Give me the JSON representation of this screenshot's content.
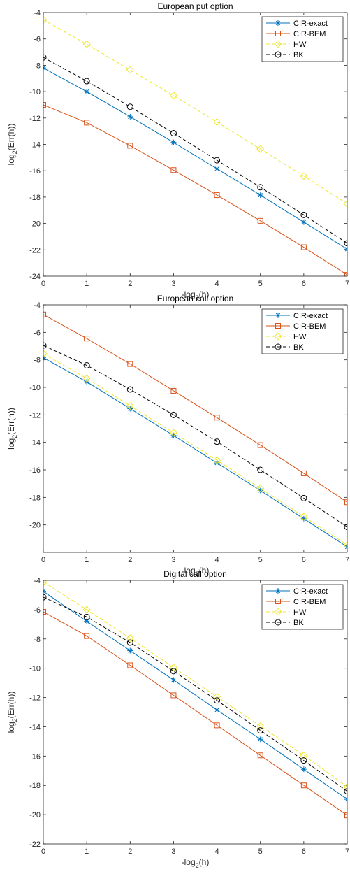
{
  "chart_data": [
    {
      "type": "line",
      "title": "European put option",
      "xlabel": {
        "base": "-log",
        "sub": "2",
        "tail": "(h)"
      },
      "ylabel": {
        "base": "log",
        "sub": "2",
        "tail": "(Err(h))"
      },
      "xlim": [
        0,
        7
      ],
      "ylim": [
        -24,
        -4
      ],
      "xticks": [
        0,
        1,
        2,
        3,
        4,
        5,
        6,
        7
      ],
      "yticks": [
        -24,
        -22,
        -20,
        -18,
        -16,
        -14,
        -12,
        -10,
        -8,
        -6,
        -4
      ],
      "legend_position": "top-right",
      "x": [
        0,
        1,
        2,
        3,
        4,
        5,
        6,
        7
      ],
      "series": [
        {
          "name": "CIR-exact",
          "color": "#0072BD",
          "dash": "solid",
          "marker": "asterisk",
          "values": [
            -8.2,
            -10.0,
            -11.9,
            -13.85,
            -15.85,
            -17.85,
            -19.9,
            -21.95
          ]
        },
        {
          "name": "CIR-BEM",
          "color": "#D95319",
          "dash": "solid",
          "marker": "square",
          "values": [
            -11.0,
            -12.35,
            -14.1,
            -15.95,
            -17.85,
            -19.8,
            -21.8,
            -23.9
          ]
        },
        {
          "name": "HW",
          "color": "#EDE62E",
          "dash": "dashed",
          "marker": "diamond",
          "values": [
            -4.55,
            -6.4,
            -8.35,
            -10.3,
            -12.3,
            -14.35,
            -16.4,
            -18.5
          ]
        },
        {
          "name": "BK",
          "color": "#000000",
          "dash": "dashed",
          "marker": "circle",
          "values": [
            -7.4,
            -9.2,
            -11.15,
            -13.15,
            -15.2,
            -17.25,
            -19.35,
            -21.5
          ]
        }
      ]
    },
    {
      "type": "line",
      "title": "European call option",
      "xlabel": {
        "base": "-log",
        "sub": "2",
        "tail": "(h)"
      },
      "ylabel": {
        "base": "log",
        "sub": "2",
        "tail": "(Err(h))"
      },
      "xlim": [
        0,
        7
      ],
      "ylim": [
        -22,
        -4
      ],
      "xticks": [
        0,
        1,
        2,
        3,
        4,
        5,
        6,
        7
      ],
      "yticks": [
        -20,
        -18,
        -16,
        -14,
        -12,
        -10,
        -8,
        -6,
        -4
      ],
      "legend_position": "top-right",
      "x": [
        0,
        1,
        2,
        3,
        4,
        5,
        6,
        7
      ],
      "series": [
        {
          "name": "CIR-exact",
          "color": "#0072BD",
          "dash": "solid",
          "marker": "asterisk",
          "values": [
            -7.85,
            -9.6,
            -11.55,
            -13.5,
            -15.5,
            -17.5,
            -19.55,
            -21.6
          ]
        },
        {
          "name": "CIR-BEM",
          "color": "#D95319",
          "dash": "solid",
          "marker": "square",
          "values": [
            -4.7,
            -6.45,
            -8.3,
            -10.25,
            -12.2,
            -14.2,
            -16.25,
            -18.35
          ]
        },
        {
          "name": "HW",
          "color": "#EDE62E",
          "dash": "dashed",
          "marker": "diamond",
          "values": [
            -7.55,
            -9.35,
            -11.35,
            -13.3,
            -15.3,
            -17.35,
            -19.4,
            -21.45
          ]
        },
        {
          "name": "BK",
          "color": "#000000",
          "dash": "dashed",
          "marker": "circle",
          "values": [
            -6.95,
            -8.4,
            -10.15,
            -12.0,
            -13.95,
            -16.0,
            -18.05,
            -20.15
          ]
        }
      ]
    },
    {
      "type": "line",
      "title": "Digital call option",
      "xlabel": {
        "base": "-log",
        "sub": "2",
        "tail": "(h)"
      },
      "ylabel": {
        "base": "log",
        "sub": "2",
        "tail": "(Err(h))"
      },
      "xlim": [
        0,
        7
      ],
      "ylim": [
        -22,
        -4
      ],
      "xticks": [
        0,
        1,
        2,
        3,
        4,
        5,
        6,
        7
      ],
      "yticks": [
        -22,
        -20,
        -18,
        -16,
        -14,
        -12,
        -10,
        -8,
        -6,
        -4
      ],
      "legend_position": "top-right",
      "x": [
        0,
        1,
        2,
        3,
        4,
        5,
        6,
        7
      ],
      "series": [
        {
          "name": "CIR-exact",
          "color": "#0072BD",
          "dash": "solid",
          "marker": "asterisk",
          "values": [
            -4.75,
            -6.8,
            -8.8,
            -10.8,
            -12.85,
            -14.85,
            -16.9,
            -18.95
          ]
        },
        {
          "name": "CIR-BEM",
          "color": "#D95319",
          "dash": "solid",
          "marker": "square",
          "values": [
            -6.15,
            -7.8,
            -9.8,
            -11.85,
            -13.9,
            -15.95,
            -18.0,
            -20.05
          ]
        },
        {
          "name": "HW",
          "color": "#EDE62E",
          "dash": "dashed",
          "marker": "diamond",
          "values": [
            -4.1,
            -6.0,
            -7.95,
            -9.95,
            -11.95,
            -13.95,
            -15.95,
            -18.1
          ]
        },
        {
          "name": "BK",
          "color": "#000000",
          "dash": "dashed",
          "marker": "circle",
          "values": [
            -5.15,
            -6.5,
            -8.25,
            -10.2,
            -12.2,
            -14.25,
            -16.3,
            -18.4
          ]
        }
      ]
    }
  ]
}
